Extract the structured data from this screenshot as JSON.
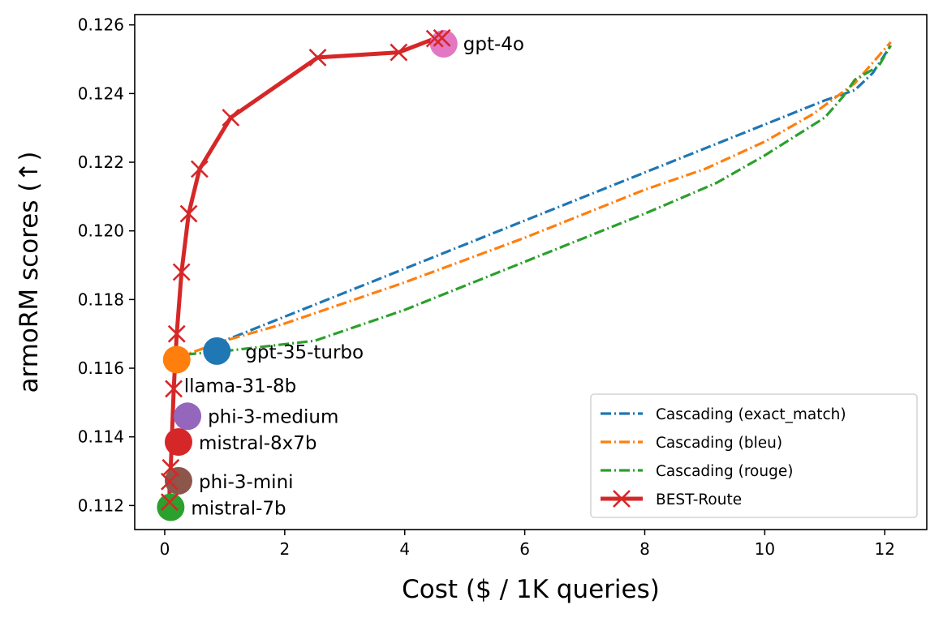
{
  "chart_data": {
    "type": "line",
    "title": "",
    "xlabel": "Cost ($ / 1K queries)",
    "ylabel": "armoRM scores (↑)",
    "xlim": [
      -0.5,
      12.7
    ],
    "ylim": [
      0.1113,
      0.1263
    ],
    "xticks": [
      0,
      2,
      4,
      6,
      8,
      10,
      12
    ],
    "yticks": [
      0.112,
      0.114,
      0.116,
      0.118,
      0.12,
      0.122,
      0.124,
      0.126
    ],
    "xtick_labels": [
      "0",
      "2",
      "4",
      "6",
      "8",
      "10",
      "12"
    ],
    "ytick_labels": [
      "0.112",
      "0.114",
      "0.116",
      "0.118",
      "0.120",
      "0.122",
      "0.124",
      "0.126"
    ],
    "grid": false,
    "legend_position": "lower-right",
    "series": [
      {
        "name": "Cascading (exact_match)",
        "color": "#1f77b4",
        "style": "dashdot",
        "x": [
          0.85,
          2.0,
          4.0,
          6.0,
          8.0,
          10.0,
          11.0,
          11.5,
          11.8,
          12.1
        ],
        "y": [
          0.1167,
          0.1175,
          0.1189,
          0.1203,
          0.1217,
          0.1231,
          0.1238,
          0.1241,
          0.1246,
          0.1254
        ]
      },
      {
        "name": "Cascading (bleu)",
        "color": "#ff7f0e",
        "style": "dashdot",
        "x": [
          0.2,
          1.0,
          2.0,
          4.0,
          6.0,
          8.0,
          9.0,
          10.0,
          10.8,
          11.5,
          12.1
        ],
        "y": [
          0.1163,
          0.1168,
          0.1173,
          0.1185,
          0.1198,
          0.1212,
          0.1218,
          0.1226,
          0.1234,
          0.1243,
          0.1255
        ]
      },
      {
        "name": "Cascading (rouge)",
        "color": "#2ca02c",
        "style": "dashdot",
        "x": [
          0.35,
          1.0,
          2.5,
          4.0,
          6.0,
          8.0,
          9.2,
          10.0,
          11.0,
          11.3,
          11.5,
          11.9,
          12.1
        ],
        "y": [
          0.1164,
          0.1165,
          0.1168,
          0.1177,
          0.1191,
          0.1205,
          0.1214,
          0.1222,
          0.1233,
          0.1239,
          0.1244,
          0.1248,
          0.1254
        ]
      },
      {
        "name": "BEST-Route",
        "color": "#d62728",
        "style": "solid",
        "marker": "x",
        "x": [
          0.08,
          0.08,
          0.1,
          0.15,
          0.2,
          0.28,
          0.4,
          0.58,
          1.1,
          2.55,
          3.9,
          4.5,
          4.62
        ],
        "y": [
          0.1121,
          0.1127,
          0.1131,
          0.1154,
          0.117,
          0.1188,
          0.1205,
          0.1218,
          0.1233,
          0.12505,
          0.1252,
          0.1256,
          0.12562
        ]
      }
    ],
    "models": [
      {
        "name": "gpt-4o",
        "x": 4.65,
        "y": 0.12545,
        "color": "#e377c2"
      },
      {
        "name": "gpt-35-turbo",
        "x": 0.87,
        "y": 0.1165,
        "color": "#1f77b4"
      },
      {
        "name": "llama-31-8b",
        "x": 0.2,
        "y": 0.11625,
        "color": "#ff7f0e"
      },
      {
        "name": "phi-3-medium",
        "x": 0.38,
        "y": 0.1146,
        "color": "#9467bd"
      },
      {
        "name": "mistral-8x7b",
        "x": 0.23,
        "y": 0.11385,
        "color": "#d62728"
      },
      {
        "name": "phi-3-mini",
        "x": 0.23,
        "y": 0.11272,
        "color": "#8c564b"
      },
      {
        "name": "mistral-7b",
        "x": 0.1,
        "y": 0.11195,
        "color": "#2ca02c"
      }
    ]
  }
}
